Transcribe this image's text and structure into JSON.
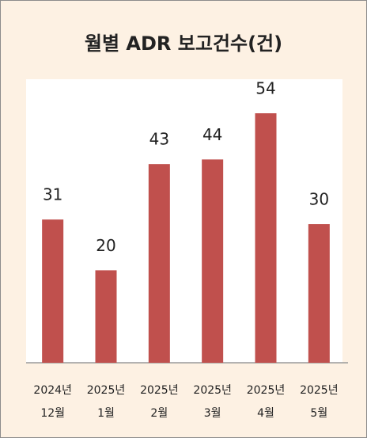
{
  "chart_data": {
    "type": "bar",
    "title": "월별 ADR 보고건수(건)",
    "categories": [
      [
        "2024년",
        "12월"
      ],
      [
        "2025년",
        "1월"
      ],
      [
        "2025년",
        "2월"
      ],
      [
        "2025년",
        "3월"
      ],
      [
        "2025년",
        "4월"
      ],
      [
        "2025년",
        "5월"
      ]
    ],
    "values": [
      31,
      20,
      43,
      44,
      54,
      30
    ],
    "color": "#c0504d"
  }
}
